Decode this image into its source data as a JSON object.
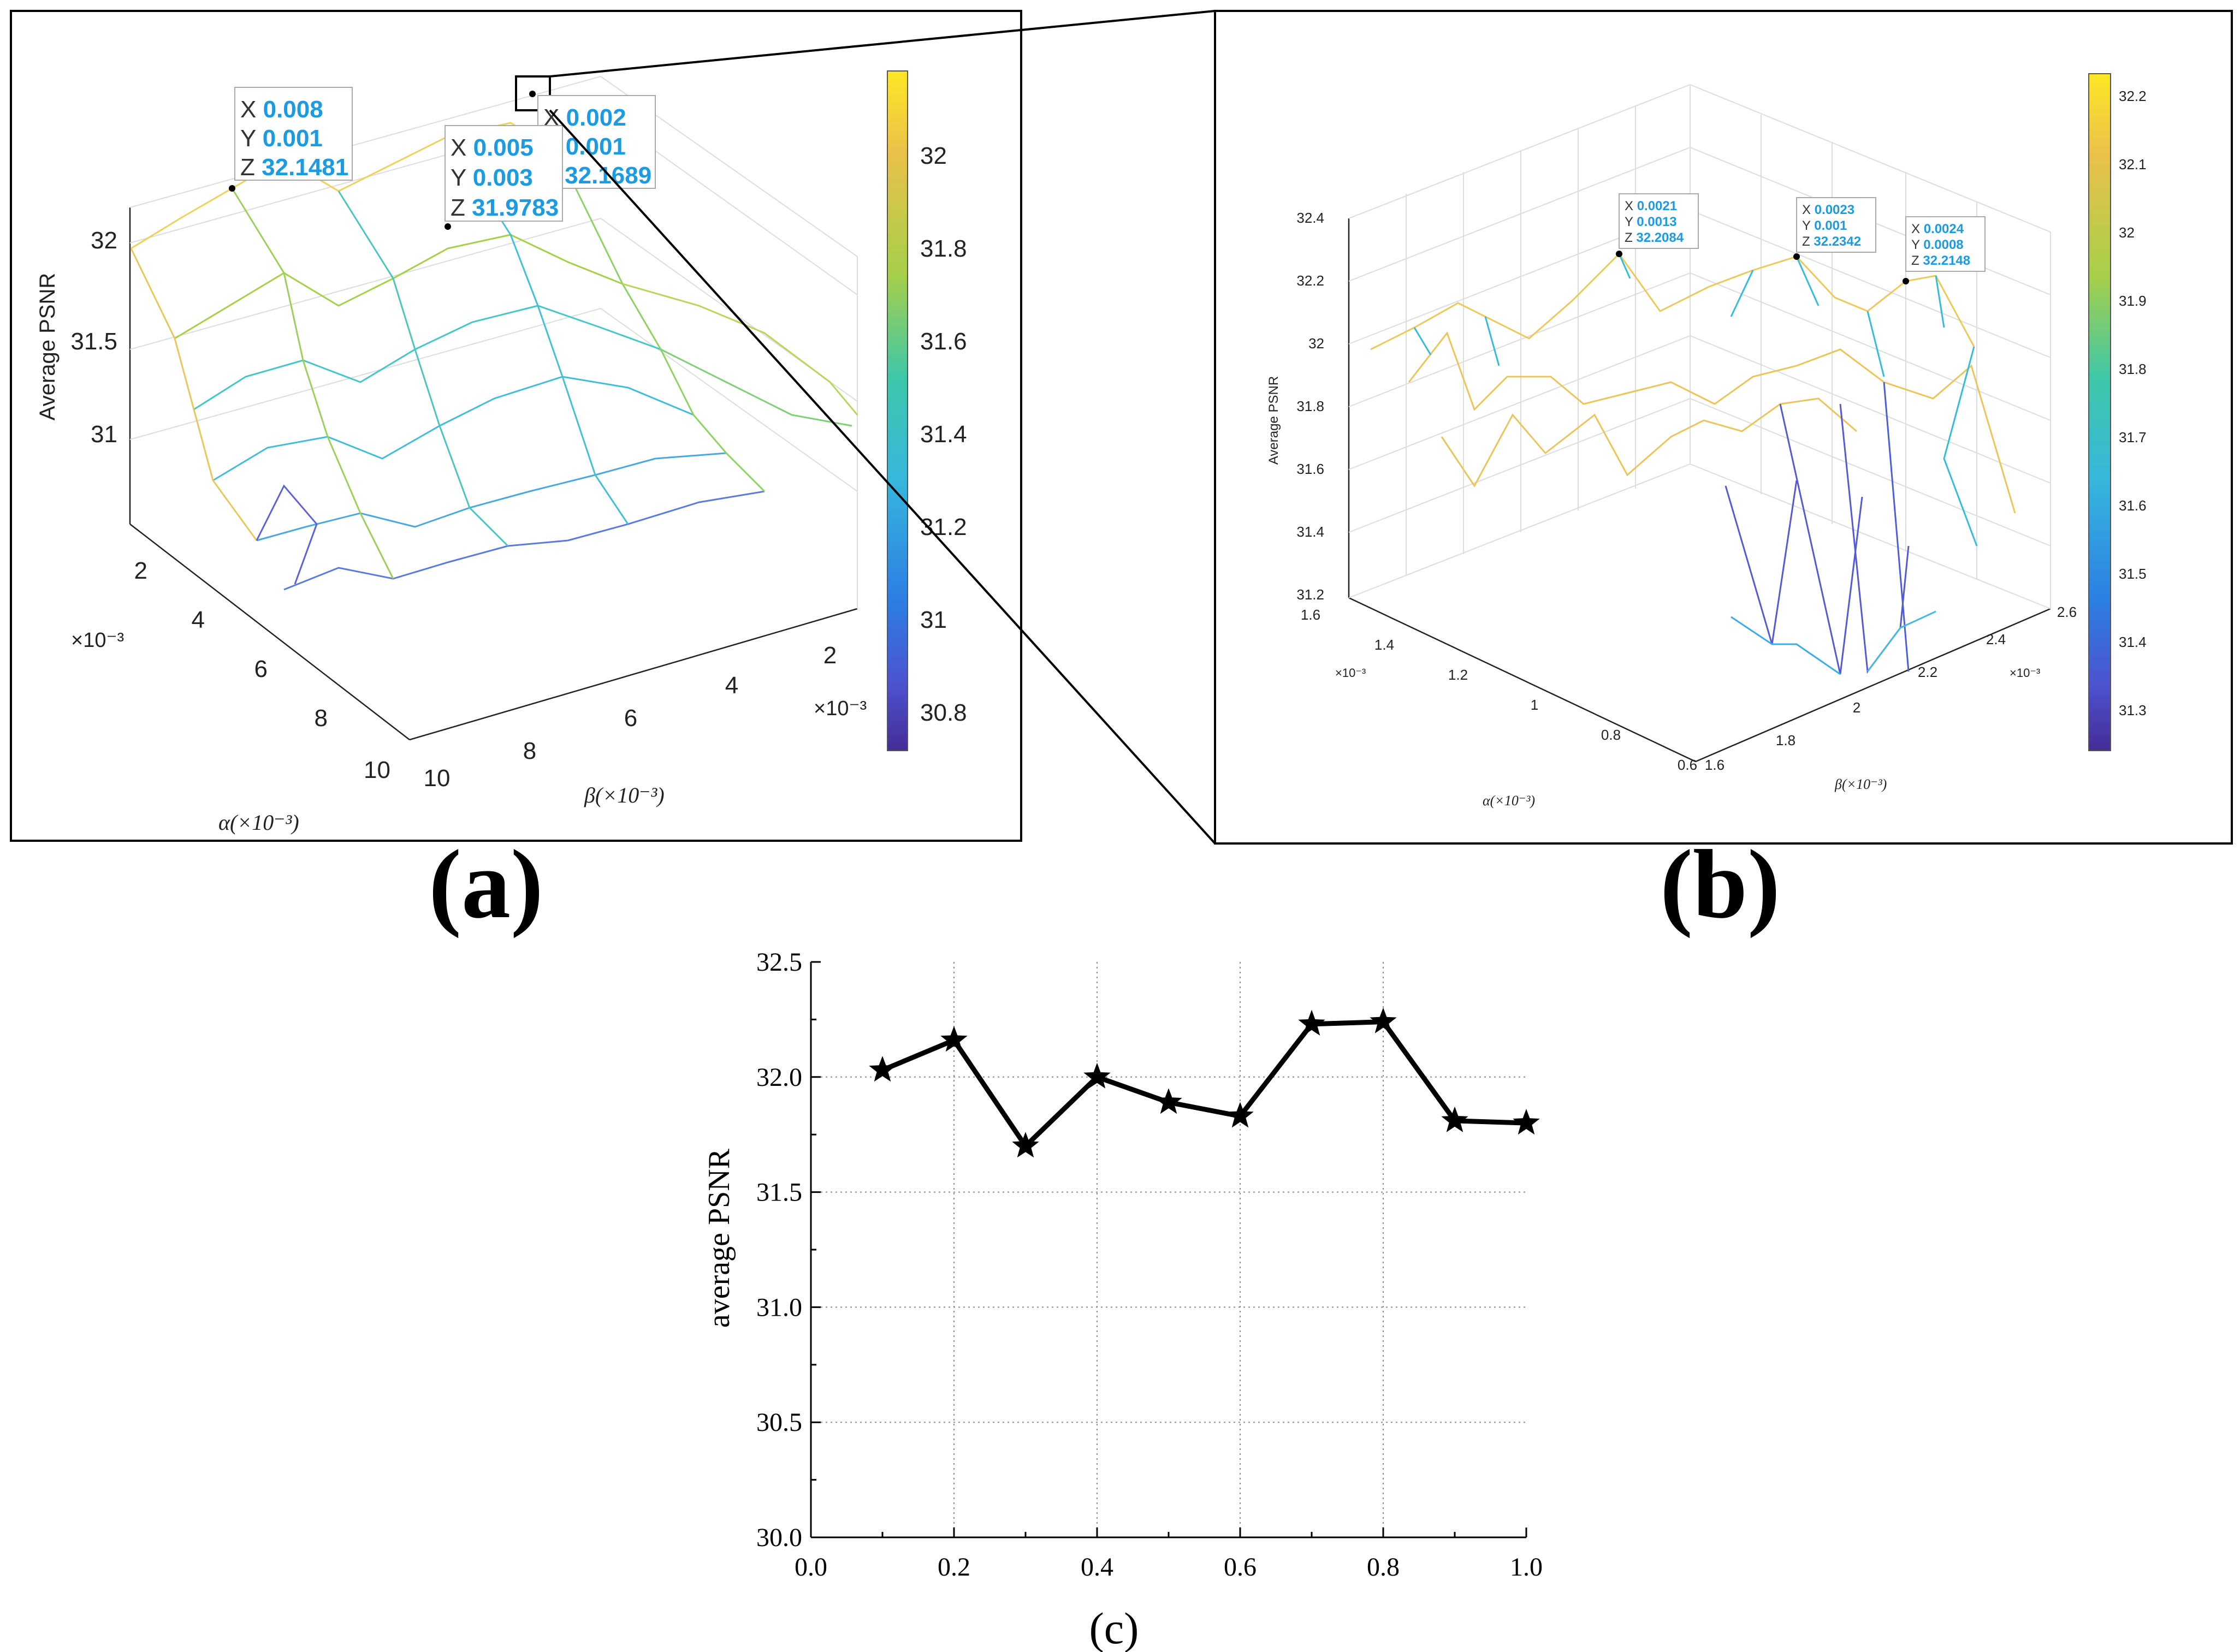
{
  "panels": {
    "a": {
      "caption": "(a)",
      "z_label": "Average PSNR",
      "z_ticks": [
        "32",
        "31.5",
        "31"
      ],
      "alpha_ticks": [
        "2",
        "4",
        "6",
        "8",
        "10"
      ],
      "beta_ticks": [
        "10",
        "8",
        "6",
        "4",
        "2"
      ],
      "alpha_exp": "×10⁻³",
      "beta_exp": "×10⁻³",
      "alpha_label": "α(×10⁻³)",
      "beta_label": "β(×10⁻³)",
      "colorbar_ticks": [
        "32",
        "31.8",
        "31.6",
        "31.4",
        "31.2",
        "31",
        "30.8"
      ],
      "tooltips": [
        {
          "x_key": "X",
          "x": "0.008",
          "y_key": "Y",
          "y": "0.001",
          "z_key": "Z",
          "z": "32.1481"
        },
        {
          "x_key": "X",
          "x": "0.005",
          "y_key": "Y",
          "y": "0.003",
          "z_key": "Z",
          "z": "31.9783"
        },
        {
          "x_key": "X",
          "x": "0.002",
          "y_key": "Y",
          "y": "0.001",
          "z_key": "Z",
          "z": "32.1689"
        }
      ]
    },
    "b": {
      "caption": "(b)",
      "z_label": "Average PSNR",
      "z_ticks": [
        "32.4",
        "32.2",
        "32",
        "31.8",
        "31.6",
        "31.4",
        "31.2"
      ],
      "alpha_ticks": [
        "1.6",
        "1.4",
        "1.2",
        "1",
        "0.8",
        "0.6"
      ],
      "beta_ticks": [
        "1.6",
        "1.8",
        "2",
        "2.2",
        "2.4",
        "2.6"
      ],
      "alpha_exp": "×10⁻³",
      "beta_exp": "×10⁻³",
      "alpha_label": "α(×10⁻³)",
      "beta_label": "β(×10⁻³)",
      "colorbar_ticks": [
        "32.2",
        "32.1",
        "32",
        "31.9",
        "31.8",
        "31.7",
        "31.6",
        "31.5",
        "31.4",
        "31.3"
      ],
      "tooltips": [
        {
          "x_key": "X",
          "x": "0.0021",
          "y_key": "Y",
          "y": "0.0013",
          "z_key": "Z",
          "z": "32.2084"
        },
        {
          "x_key": "X",
          "x": "0.0023",
          "y_key": "Y",
          "y": "0.001",
          "z_key": "Z",
          "z": "32.2342"
        },
        {
          "x_key": "X",
          "x": "0.0024",
          "y_key": "Y",
          "y": "0.0008",
          "z_key": "Z",
          "z": "32.2148"
        }
      ]
    },
    "c": {
      "caption": "(c)"
    }
  },
  "colors": {
    "line": "#000000",
    "grid": "#8c8c8c",
    "tooltip_value": "#1c9be0",
    "colormap": [
      "#fde725",
      "#e9c44a",
      "#a8cf4c",
      "#4bc9a5",
      "#3bc0d2",
      "#2f8fe0",
      "#4b5fd6",
      "#4a2f9e"
    ]
  },
  "chart_data": [
    {
      "type": "line",
      "panel": "c",
      "x": [
        0.1,
        0.2,
        0.3,
        0.4,
        0.5,
        0.6,
        0.7,
        0.8,
        0.9,
        1.0
      ],
      "series": [
        {
          "values": [
            32.03,
            32.16,
            31.7,
            32.0,
            31.89,
            31.83,
            32.23,
            32.24,
            31.81,
            31.8
          ],
          "marker": "star"
        }
      ],
      "xlim": [
        0.0,
        1.0
      ],
      "ylim": [
        30.0,
        32.5
      ],
      "xticks": [
        "0.0",
        "0.2",
        "0.4",
        "0.6",
        "0.8",
        "1.0"
      ],
      "yticks": [
        "30.0",
        "30.5",
        "31.0",
        "31.5",
        "32.0",
        "32.5"
      ],
      "xlabel": "",
      "ylabel": "average PSNR",
      "grid": true
    },
    {
      "type": "heatmap",
      "panel": "a",
      "zlabel": "Average PSNR",
      "xlabel": "β(×10⁻³)",
      "ylabel": "α(×10⁻³)",
      "colorbar_range": [
        30.7,
        32.2
      ]
    },
    {
      "type": "heatmap",
      "panel": "b",
      "zlabel": "Average PSNR",
      "xlabel": "β(×10⁻³)",
      "ylabel": "α(×10⁻³)",
      "colorbar_range": [
        31.23,
        32.25
      ]
    }
  ]
}
